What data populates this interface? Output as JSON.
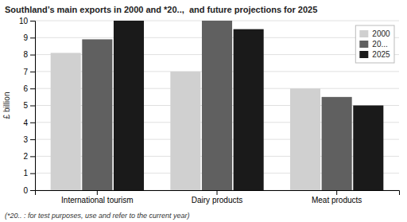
{
  "chart_data": {
    "type": "bar",
    "title": "Southland’s main exports in 2000 and *20..,  and future projections for 2025",
    "categories": [
      "International tourism",
      "Dairy products",
      "Meat products"
    ],
    "series": [
      {
        "name": "2000",
        "color": "#d0d0d0",
        "values": [
          8.1,
          7.0,
          6.0
        ]
      },
      {
        "name": "20...",
        "color": "#606060",
        "values": [
          8.9,
          10.0,
          5.5
        ]
      },
      {
        "name": "2025",
        "color": "#1a1a1a",
        "values": [
          10.0,
          9.5,
          5.0
        ]
      }
    ],
    "ylabel": "£ billion",
    "ylim": [
      0,
      10
    ],
    "yticks": [
      0,
      1,
      2,
      3,
      4,
      5,
      6,
      7,
      8,
      9,
      10
    ],
    "grid": true,
    "legend": "upper right",
    "annotations": [
      "(*20.. : for test purposes, use and refer to the current year)"
    ]
  }
}
